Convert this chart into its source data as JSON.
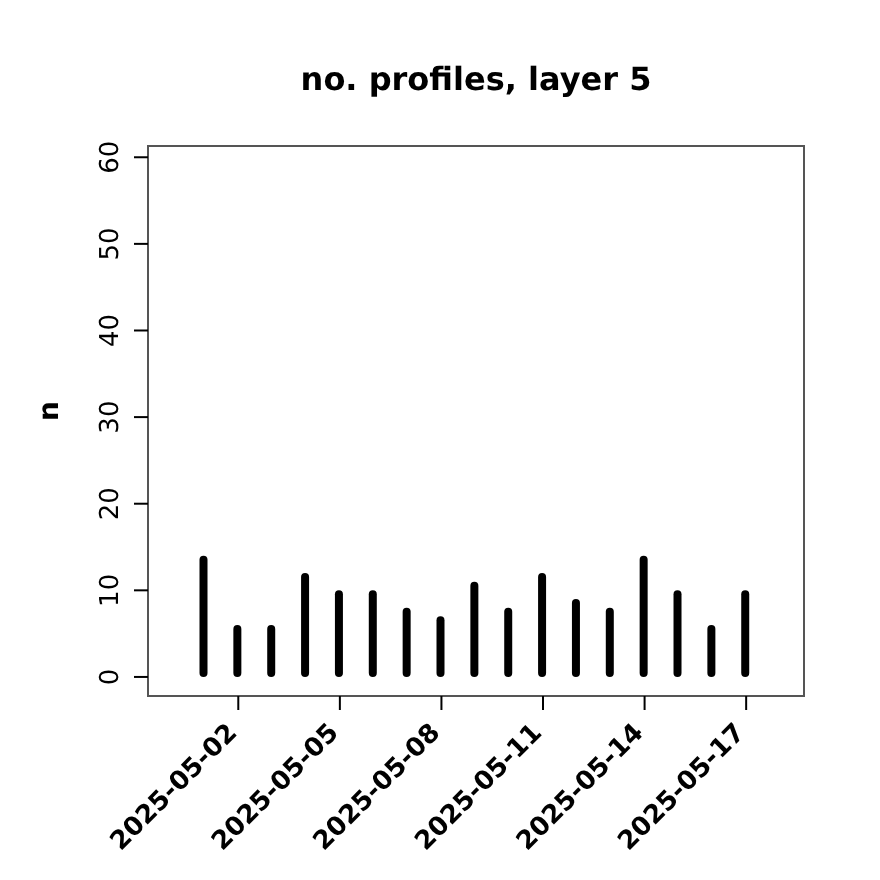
{
  "chart_data": {
    "type": "bar",
    "title": "no. profiles, layer 5",
    "ylabel": "n",
    "x": [
      "2025-05-01",
      "2025-05-02",
      "2025-05-03",
      "2025-05-04",
      "2025-05-05",
      "2025-05-06",
      "2025-05-07",
      "2025-05-08",
      "2025-05-09",
      "2025-05-10",
      "2025-05-11",
      "2025-05-12",
      "2025-05-13",
      "2025-05-14",
      "2025-05-15",
      "2025-05-16",
      "2025-05-17"
    ],
    "values": [
      14,
      6,
      6,
      12,
      10,
      10,
      8,
      7,
      11,
      8,
      12,
      9,
      8,
      14,
      10,
      6,
      10
    ],
    "color": "#000000",
    "xlim": [
      "2025-04-29T08:00",
      "2025-05-18T17:00"
    ],
    "xticks": [
      "2025-05-02",
      "2025-05-05",
      "2025-05-08",
      "2025-05-11",
      "2025-05-14",
      "2025-05-17"
    ],
    "ylim": [
      -2.2,
      61.3
    ],
    "yticks": [
      0,
      10,
      20,
      30,
      40,
      50,
      60
    ],
    "grid": false,
    "legend": false
  }
}
